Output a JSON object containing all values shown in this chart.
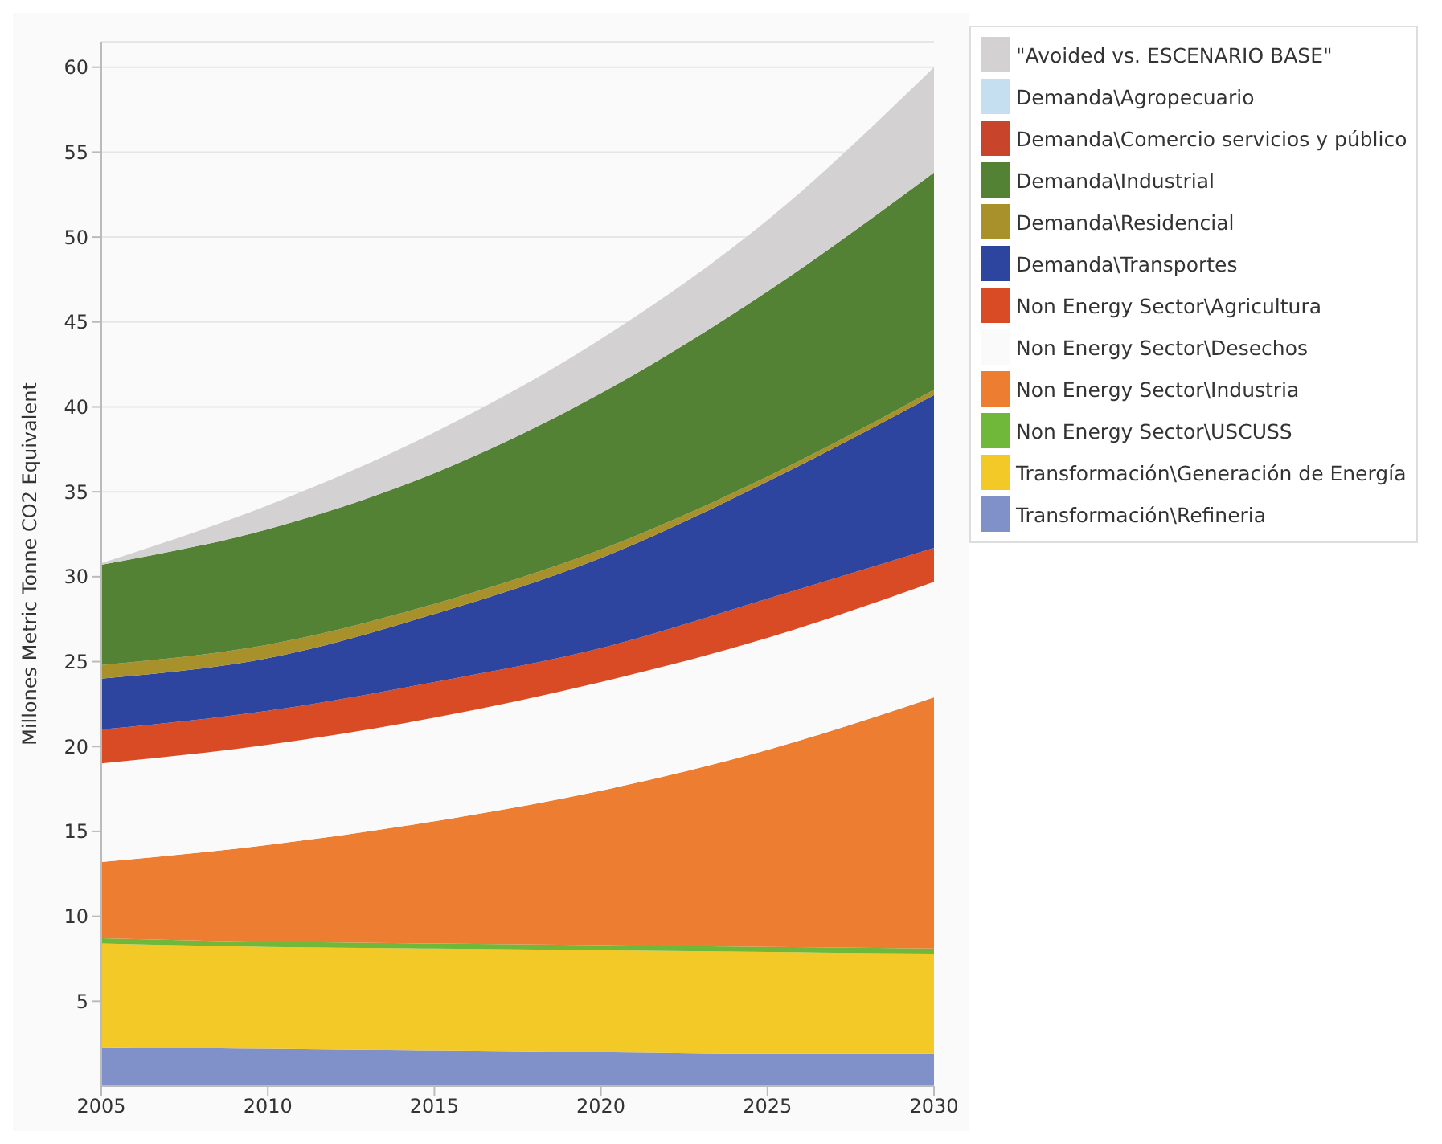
{
  "chart_data": {
    "type": "area",
    "stacked": true,
    "ylabel": "Millones Metric Tonne CO2 Equivalent",
    "x": [
      2005,
      2010,
      2015,
      2020,
      2025,
      2030
    ],
    "xlim": [
      2005,
      2030
    ],
    "xticks": [
      2005,
      2010,
      2015,
      2020,
      2025,
      2030
    ],
    "ylim": [
      0,
      61.5
    ],
    "yticks": [
      5,
      10,
      15,
      20,
      25,
      30,
      35,
      40,
      45,
      50,
      55,
      60
    ],
    "grid": "y",
    "legend": "right",
    "series": [
      {
        "name": "Transformación\\Refineria",
        "color": "#8090c8",
        "values": [
          2.3,
          2.2,
          2.1,
          2.0,
          1.9,
          1.9
        ]
      },
      {
        "name": "Transformación\\Generación de Energía",
        "color": "#f2c927",
        "values": [
          6.1,
          6.0,
          6.0,
          6.0,
          6.0,
          5.9
        ]
      },
      {
        "name": "Non Energy Sector\\USCUSS",
        "color": "#70b83a",
        "values": [
          0.3,
          0.3,
          0.3,
          0.3,
          0.3,
          0.3
        ]
      },
      {
        "name": "Non Energy Sector\\Industria",
        "color": "#ed7d31",
        "values": [
          4.5,
          5.7,
          7.2,
          9.1,
          11.6,
          14.8
        ]
      },
      {
        "name": "Non Energy Sector\\Desechos",
        "color": "#fafafa",
        "values": [
          5.8,
          5.9,
          6.1,
          6.4,
          6.6,
          6.8
        ]
      },
      {
        "name": "Non Energy Sector\\Agricultura",
        "color": "#d94b25",
        "values": [
          2.0,
          2.0,
          2.1,
          2.0,
          2.3,
          2.0
        ]
      },
      {
        "name": "Demanda\\Transportes",
        "color": "#2e45a0",
        "values": [
          3.0,
          3.1,
          4.0,
          5.3,
          6.9,
          9.0
        ]
      },
      {
        "name": "Demanda\\Residencial",
        "color": "#a8902a",
        "values": [
          0.8,
          0.8,
          0.6,
          0.5,
          0.3,
          0.3
        ]
      },
      {
        "name": "Demanda\\Industrial",
        "color": "#548235",
        "values": [
          5.9,
          6.8,
          7.7,
          9.2,
          10.9,
          12.8
        ]
      },
      {
        "name": "Demanda\\Comercio servicios y público",
        "color": "#c8452c",
        "values": [
          null,
          null,
          null,
          null,
          null,
          null
        ]
      },
      {
        "name": "Demanda\\Agropecuario",
        "color": "#c5dff0",
        "values": [
          null,
          null,
          null,
          null,
          null,
          null
        ]
      },
      {
        "name": "\"Avoided vs. ESCENARIO BASE\"",
        "color": "#d3d1d1",
        "values": [
          0.1,
          1.4,
          2.4,
          3.2,
          4.2,
          6.2
        ]
      }
    ]
  }
}
